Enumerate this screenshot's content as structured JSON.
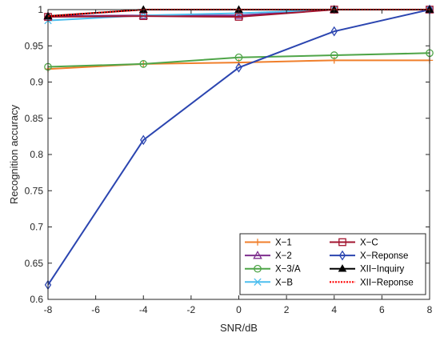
{
  "chart_data": {
    "type": "line",
    "xlabel": "SNR/dB",
    "ylabel": "Recognition accuracy",
    "xlim": [
      -8,
      8
    ],
    "ylim": [
      0.6,
      1.0
    ],
    "x": [
      -8,
      -4,
      0,
      4,
      8
    ],
    "xticks": [
      "-8",
      "-6",
      "-4",
      "-2",
      "0",
      "2",
      "4",
      "6",
      "8"
    ],
    "yticks": [
      "0.6",
      "0.65",
      "0.7",
      "0.75",
      "0.8",
      "0.85",
      "0.9",
      "0.95",
      "1"
    ],
    "grid": false,
    "legend_placement": "bottom-right",
    "legend_columns": 2,
    "series": [
      {
        "name": "X−1",
        "color": "#f07f2b",
        "marker": "plus",
        "dash": "solid",
        "values": [
          0.918,
          0.925,
          0.927,
          0.93,
          0.93
        ]
      },
      {
        "name": "X−2",
        "color": "#7e2f8e",
        "marker": "triangle-open",
        "dash": "solid",
        "values": [
          0.991,
          0.992,
          0.992,
          1.0,
          1.0
        ]
      },
      {
        "name": "X−3/A",
        "color": "#4fa548",
        "marker": "circle-open",
        "dash": "solid",
        "values": [
          0.921,
          0.925,
          0.934,
          0.937,
          0.94
        ]
      },
      {
        "name": "X−B",
        "color": "#4dbeee",
        "marker": "x",
        "dash": "solid",
        "values": [
          0.985,
          0.992,
          0.995,
          1.0,
          1.0
        ]
      },
      {
        "name": "X−C",
        "color": "#a2142f",
        "marker": "square-open",
        "dash": "solid",
        "values": [
          0.99,
          0.991,
          0.99,
          1.0,
          1.0
        ]
      },
      {
        "name": "X−Reponse",
        "color": "#2b45b0",
        "marker": "diamond-open",
        "dash": "solid",
        "values": [
          0.62,
          0.82,
          0.92,
          0.97,
          1.0
        ]
      },
      {
        "name": "XII−Inquiry",
        "color": "#000000",
        "marker": "triangle-filled",
        "dash": "solid",
        "values": [
          0.991,
          1.0,
          1.0,
          1.0,
          1.0
        ]
      },
      {
        "name": "XII−Reponse",
        "color": "#ff0000",
        "marker": "none",
        "dash": "dotted",
        "values": [
          0.991,
          1.0,
          1.0,
          1.0,
          1.0
        ]
      }
    ]
  }
}
